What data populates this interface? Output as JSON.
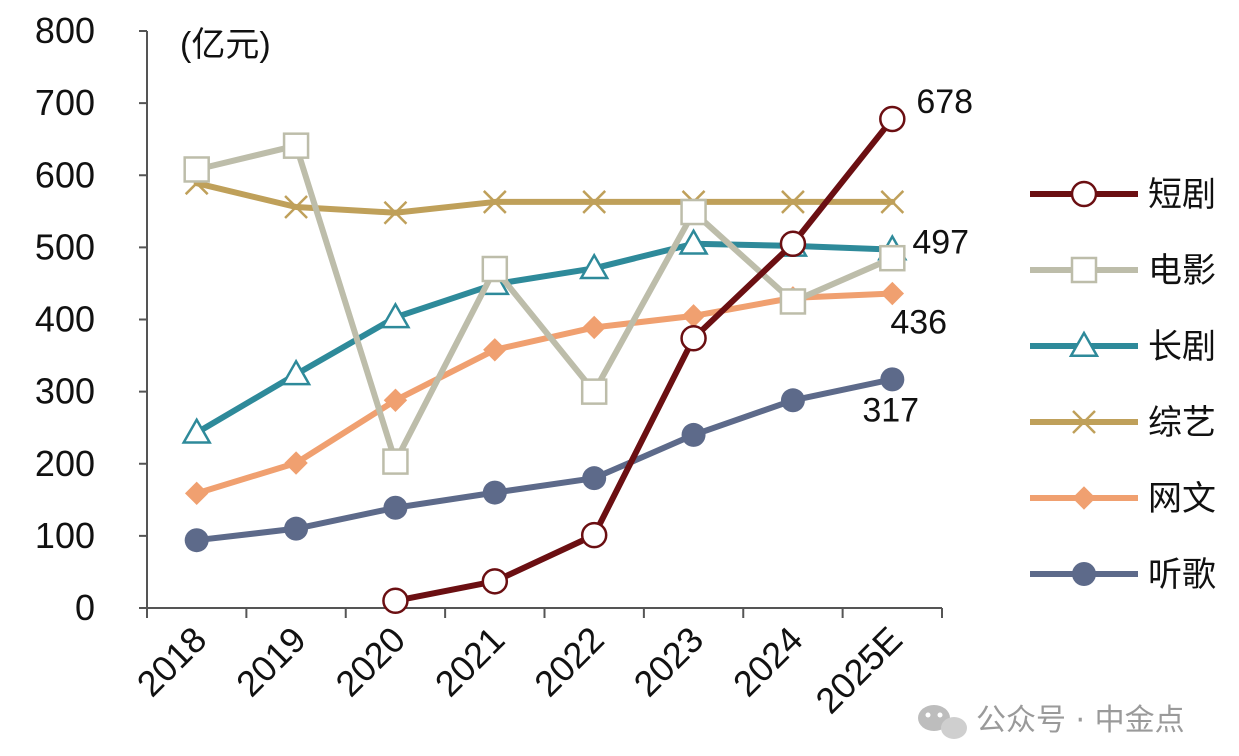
{
  "chart_data": {
    "type": "line",
    "unit_label": "(亿元)",
    "categories": [
      "2018",
      "2019",
      "2020",
      "2021",
      "2022",
      "2023",
      "2024",
      "2025E"
    ],
    "ylim": [
      0,
      800
    ],
    "yticks": [
      "0",
      "100",
      "200",
      "300",
      "400",
      "500",
      "600",
      "700",
      "800"
    ],
    "grid": false,
    "legend_position": "right",
    "series": [
      {
        "name": "短剧",
        "color": "#6b0f12",
        "marker": "open-circle",
        "values": [
          null,
          null,
          10,
          37,
          101,
          374,
          505,
          678
        ]
      },
      {
        "name": "电影",
        "color": "#bdbdaa",
        "marker": "open-square",
        "values": [
          608,
          641,
          203,
          470,
          300,
          549,
          425,
          485
        ]
      },
      {
        "name": "长剧",
        "color": "#2e8a9a",
        "marker": "open-triangle",
        "values": [
          243,
          324,
          403,
          449,
          471,
          505,
          502,
          497
        ]
      },
      {
        "name": "综艺",
        "color": "#bfa05a",
        "marker": "x",
        "values": [
          589,
          556,
          548,
          563,
          563,
          563,
          563,
          563
        ]
      },
      {
        "name": "网文",
        "color": "#f0a070",
        "marker": "diamond",
        "values": [
          159,
          201,
          288,
          358,
          389,
          405,
          430,
          436
        ]
      },
      {
        "name": "听歌",
        "color": "#5d6a8a",
        "marker": "filled-circle",
        "values": [
          94,
          110,
          139,
          160,
          180,
          240,
          288,
          317
        ]
      }
    ],
    "data_labels": [
      {
        "series": "短剧",
        "category": "2025E",
        "text": "678"
      },
      {
        "series": "长剧",
        "category": "2025E",
        "text": "497"
      },
      {
        "series": "网文",
        "category": "2025E",
        "text": "436"
      },
      {
        "series": "听歌",
        "category": "2025E",
        "text": "317"
      }
    ]
  },
  "watermark": {
    "text": "公众号 · 中金点",
    "icon": "wechat-icon"
  }
}
